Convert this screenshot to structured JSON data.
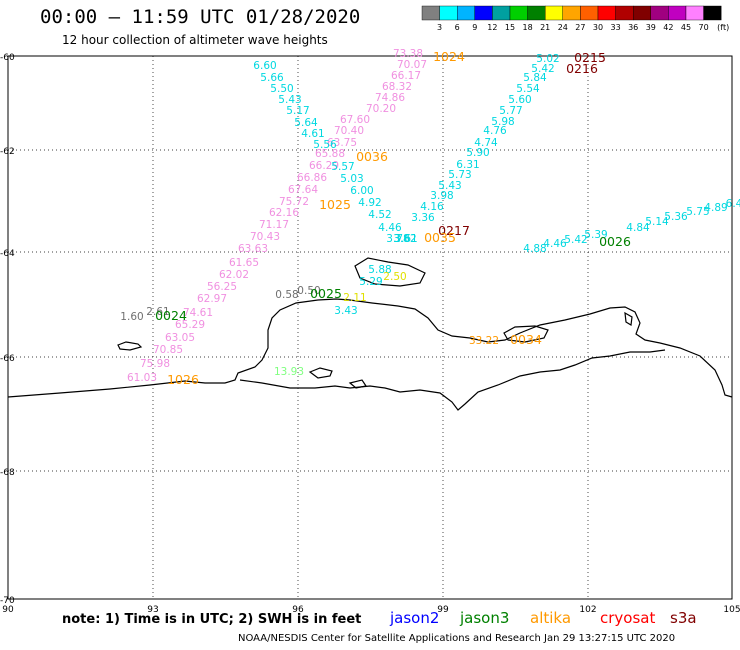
{
  "title": "00:00 – 11:59 UTC 01/28/2020",
  "subtitle": "12 hour collection of altimeter wave heights",
  "colorbar": {
    "colors": [
      "#808080",
      "#00ffff",
      "#00b4ff",
      "#0000ff",
      "#00a0a0",
      "#00d000",
      "#008000",
      "#ffff00",
      "#ffa500",
      "#ff6000",
      "#ff0000",
      "#b00000",
      "#800000",
      "#a00080",
      "#c000c0",
      "#ff80ff",
      "#000000"
    ],
    "labels": [
      "3",
      "6",
      "9",
      "12",
      "15",
      "18",
      "21",
      "24",
      "27",
      "30",
      "33",
      "36",
      "39",
      "42",
      "45",
      "70"
    ],
    "unit": "(ft)"
  },
  "axes": {
    "lat_labels": [
      "-60",
      "-62",
      "-64",
      "-66",
      "-68",
      "-70"
    ],
    "lon_labels": [
      "90",
      "93",
      "96",
      "99",
      "102",
      "105"
    ]
  },
  "footer_note": "note: 1) Time is in UTC; 2) SWH is in feet",
  "legend": [
    {
      "label": "jason2",
      "color": "#0000ff"
    },
    {
      "label": "jason3",
      "color": "#008000"
    },
    {
      "label": "altika",
      "color": "#ff9900"
    },
    {
      "label": "cryosat",
      "color": "#ff0000"
    },
    {
      "label": "s3a",
      "color": "#800000"
    }
  ],
  "credit": "NOAA/NESDIS Center for Satellite Applications and Research   Jan 29 13:27:15 UTC 2020",
  "colors": {
    "pink": "#f090e0",
    "cyan": "#00d8e0",
    "orange": "#ff9900",
    "green": "#008000",
    "maroon": "#800000",
    "gray": "#707070",
    "lightgreen": "#80ff80",
    "yellow": "#e0e000"
  },
  "times": [
    {
      "t": "1024",
      "c": "orange"
    },
    {
      "t": "0215",
      "c": "maroon"
    },
    {
      "t": "0216",
      "c": "maroon"
    },
    {
      "t": "0036",
      "c": "orange"
    },
    {
      "t": "1025",
      "c": "orange"
    },
    {
      "t": "0217",
      "c": "maroon"
    },
    {
      "t": "0035",
      "c": "orange"
    },
    {
      "t": "0026",
      "c": "green"
    },
    {
      "t": "0025",
      "c": "green"
    },
    {
      "t": "0024",
      "c": "green"
    },
    {
      "t": "0034",
      "c": "orange"
    },
    {
      "t": "1026",
      "c": "orange"
    }
  ],
  "tracks": [
    {
      "name": "pink-track",
      "color": "pink",
      "values": [
        "73.38",
        "70.07",
        "66.17",
        "68.32",
        "74.86",
        "70.20",
        "67.60",
        "70.40",
        "63.75",
        "65.88",
        "66.29",
        "66.86",
        "67.64",
        "75.72",
        "62.16",
        "71.17",
        "70.43",
        "63.63",
        "61.65",
        "62.02",
        "56.25",
        "62.97",
        "74.61",
        "65.29",
        "63.05",
        "70.85",
        "75.98",
        "61.03"
      ]
    },
    {
      "name": "cyan-track-a",
      "color": "cyan",
      "values": [
        "6.60",
        "5.66",
        "5.50",
        "5.43",
        "5.17",
        "5.64",
        "4.61",
        "5.56",
        "5.57",
        "5.03",
        "6.00",
        "4.92",
        "4.52",
        "4.46",
        "3.78",
        "3.61",
        "3.62"
      ]
    },
    {
      "name": "cyan-track-b",
      "color": "cyan",
      "values": [
        "5.02",
        "5.42",
        "5.84",
        "5.54",
        "5.60",
        "5.77",
        "5.98",
        "4.76",
        "4.74",
        "5.90",
        "6.31",
        "5.73",
        "5.43",
        "3.98",
        "4.16",
        "3.36"
      ]
    },
    {
      "name": "cyan-track-c",
      "color": "cyan",
      "values": [
        "4.88",
        "4.46",
        "5.42",
        "5.39",
        "4.84",
        "5.14",
        "5.36",
        "5.75",
        "4.89",
        "6.4"
      ]
    },
    {
      "name": "cyan-track-d",
      "color": "cyan",
      "values": [
        "5.88",
        "5.29",
        "3.43"
      ]
    },
    {
      "name": "misc-labels",
      "color": "gray",
      "values": [
        "1.60",
        "2.61",
        "0.58",
        "0.50"
      ]
    },
    {
      "name": "misc-colored",
      "color": "orange",
      "values": [
        "2.11",
        "2.50",
        "13.93",
        "33.22"
      ]
    }
  ]
}
